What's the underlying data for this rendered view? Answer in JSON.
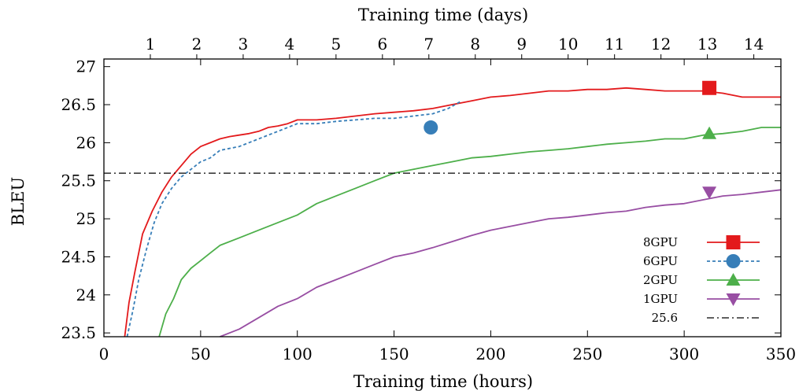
{
  "chart_data": {
    "type": "line",
    "title": "",
    "xlabel": "Training time (hours)",
    "x2label": "Training time (days)",
    "ylabel": "BLEU",
    "xlim": [
      0,
      350
    ],
    "ylim": [
      23.45,
      27.1
    ],
    "grid": false,
    "legend_position": "bottom-right",
    "xticks": [
      "0",
      "50",
      "100",
      "150",
      "200",
      "250",
      "300",
      "350"
    ],
    "yticks": [
      "23.5",
      "24",
      "24.5",
      "25",
      "25.5",
      "26",
      "26.5",
      "27"
    ],
    "x2ticks": [
      "1",
      "2",
      "3",
      "4",
      "5",
      "6",
      "7",
      "8",
      "9",
      "10",
      "11",
      "12",
      "13",
      "14"
    ],
    "series": [
      {
        "name": "8GPU",
        "color": "#e31a1c",
        "dash": "solid",
        "marker": "square",
        "marker_at": [
          313,
          26.72
        ],
        "x": [
          10,
          13,
          16,
          20,
          25,
          30,
          35,
          40,
          45,
          50,
          55,
          60,
          65,
          70,
          75,
          80,
          85,
          90,
          95,
          100,
          110,
          120,
          130,
          140,
          150,
          160,
          170,
          180,
          190,
          200,
          210,
          220,
          230,
          240,
          250,
          260,
          270,
          280,
          290,
          300,
          310,
          320,
          330,
          340,
          350
        ],
        "y": [
          23.3,
          23.9,
          24.3,
          24.8,
          25.1,
          25.35,
          25.55,
          25.7,
          25.85,
          25.95,
          26.0,
          26.05,
          26.08,
          26.1,
          26.12,
          26.15,
          26.2,
          26.22,
          26.25,
          26.3,
          26.3,
          26.32,
          26.35,
          26.38,
          26.4,
          26.42,
          26.45,
          26.5,
          26.55,
          26.6,
          26.62,
          26.65,
          26.68,
          26.68,
          26.7,
          26.7,
          26.72,
          26.7,
          26.68,
          26.68,
          26.68,
          26.65,
          26.6,
          26.6,
          26.6
        ]
      },
      {
        "name": "6GPU",
        "color": "#377eb8",
        "dash": "dashed",
        "marker": "circle",
        "marker_at": [
          169,
          26.2
        ],
        "x": [
          12,
          15,
          18,
          22,
          26,
          30,
          35,
          40,
          45,
          50,
          55,
          60,
          70,
          80,
          90,
          100,
          110,
          120,
          130,
          140,
          150,
          160,
          170,
          178,
          185
        ],
        "y": [
          23.45,
          23.8,
          24.2,
          24.6,
          24.95,
          25.2,
          25.4,
          25.55,
          25.65,
          25.75,
          25.8,
          25.9,
          25.95,
          26.05,
          26.15,
          26.25,
          26.25,
          26.28,
          26.3,
          26.32,
          26.32,
          26.35,
          26.38,
          26.45,
          26.55
        ]
      },
      {
        "name": "2GPU",
        "color": "#4daf4a",
        "dash": "solid",
        "marker": "triangle-up",
        "marker_at": [
          313,
          26.12
        ],
        "x": [
          28,
          32,
          36,
          40,
          45,
          50,
          55,
          60,
          70,
          80,
          90,
          100,
          110,
          120,
          130,
          140,
          150,
          160,
          170,
          180,
          190,
          200,
          210,
          220,
          230,
          240,
          250,
          260,
          270,
          280,
          290,
          300,
          310,
          320,
          330,
          340,
          350
        ],
        "y": [
          23.4,
          23.75,
          23.95,
          24.2,
          24.35,
          24.45,
          24.55,
          24.65,
          24.75,
          24.85,
          24.95,
          25.05,
          25.2,
          25.3,
          25.4,
          25.5,
          25.6,
          25.65,
          25.7,
          25.75,
          25.8,
          25.82,
          25.85,
          25.88,
          25.9,
          25.92,
          25.95,
          25.98,
          26.0,
          26.02,
          26.05,
          26.05,
          26.1,
          26.12,
          26.15,
          26.2,
          26.2
        ]
      },
      {
        "name": "1GPU",
        "color": "#984ea3",
        "dash": "solid",
        "marker": "triangle-down",
        "marker_at": [
          313,
          25.35
        ],
        "x": [
          60,
          70,
          80,
          90,
          100,
          110,
          120,
          130,
          140,
          150,
          160,
          170,
          180,
          190,
          200,
          210,
          220,
          230,
          240,
          250,
          260,
          270,
          280,
          290,
          300,
          310,
          320,
          330,
          340,
          350
        ],
        "y": [
          23.45,
          23.55,
          23.7,
          23.85,
          23.95,
          24.1,
          24.2,
          24.3,
          24.4,
          24.5,
          24.55,
          24.62,
          24.7,
          24.78,
          24.85,
          24.9,
          24.95,
          25.0,
          25.02,
          25.05,
          25.08,
          25.1,
          25.15,
          25.18,
          25.2,
          25.25,
          25.3,
          25.32,
          25.35,
          25.38
        ]
      },
      {
        "name": "25.6",
        "color": "#000000",
        "dash": "dashdot",
        "marker": "none",
        "x": [
          0,
          350
        ],
        "y": [
          25.6,
          25.6
        ]
      }
    ]
  }
}
